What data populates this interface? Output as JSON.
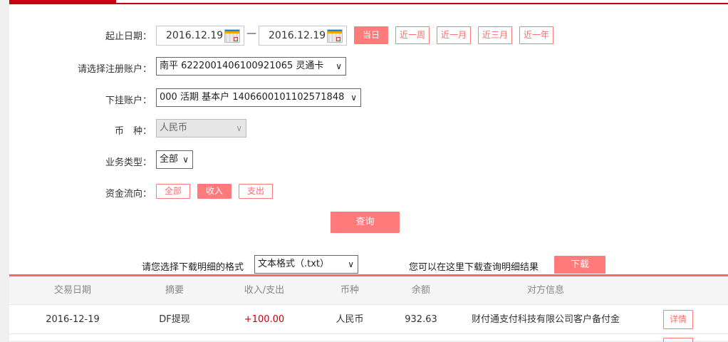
{
  "form": {
    "date_label": "起止日期：",
    "start_date": "2016.12.19",
    "dash": "—",
    "end_date": "2016.12.19",
    "ranges": [
      "当日",
      "近一周",
      "近一月",
      "近三月",
      "近一年"
    ],
    "account_label": "请选择注册账户：",
    "account_value": "南平 6222001406100921065 灵通卡",
    "sub_account_label": "下挂账户：",
    "sub_account_value": "000 活期 基本户 1406600101102571848",
    "currency_label": "币　种：",
    "currency_value": "人民币",
    "biz_type_label": "业务类型：",
    "biz_type_value": "全部",
    "flow_label": "资金流向：",
    "flows": [
      "全部",
      "收入",
      "支出"
    ],
    "query": "查询"
  },
  "download": {
    "label": "请您选择下载明细的格式",
    "format": "文本格式（.txt）",
    "hint": "您可以在这里下载查询明细结果",
    "button": "下载"
  },
  "table": {
    "headers": [
      "交易日期",
      "摘要",
      "收入/支出",
      "币种",
      "余额",
      "对方信息"
    ],
    "rows": [
      {
        "date": "2016-12-19",
        "summary": "DF提现",
        "amount": "+100.00",
        "currency": "人民币",
        "balance": "932.63",
        "counterparty": "财付通支付科技有限公司客户备付金",
        "detail": "详情"
      }
    ]
  },
  "colors": {
    "accent": "#ff7a7a",
    "brand": "#c9000f",
    "amount": "#c9000f"
  }
}
